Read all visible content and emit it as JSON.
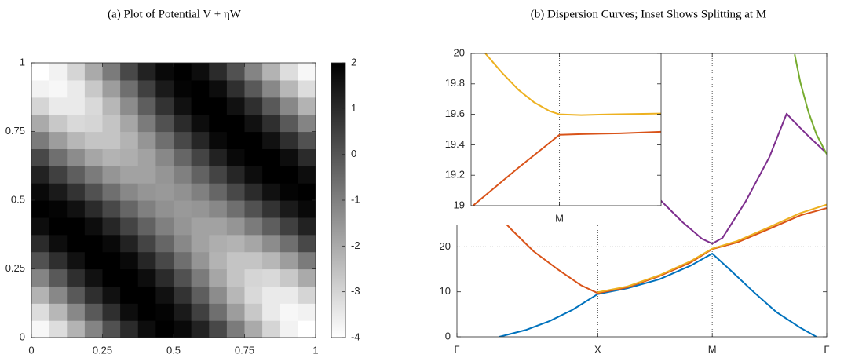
{
  "chart_data": [
    {
      "type": "heatmap",
      "title": "(a) Plot of Potential V + ηW",
      "xlim": [
        0,
        1
      ],
      "ylim": [
        0,
        1
      ],
      "xticks": [
        0,
        0.25,
        0.5,
        0.75,
        1
      ],
      "yticks": [
        0,
        0.25,
        0.5,
        0.75,
        1
      ],
      "colormap": [
        "#ffffff",
        "#000000"
      ],
      "colorbar": {
        "lim": [
          -4,
          2
        ],
        "ticks": [
          -4,
          -3,
          -2,
          -1,
          0,
          1,
          2
        ]
      },
      "z": [
        [
          -3.8,
          -3.2,
          -2.2,
          -1.1,
          0.1,
          1.0,
          1.7,
          2.0,
          1.8,
          1.2,
          0.3,
          -0.9,
          -2.0,
          -3.0,
          -3.7,
          -4.0
        ],
        [
          -3.2,
          -2.3,
          -1.2,
          -0.1,
          0.9,
          1.7,
          2.0,
          1.9,
          1.4,
          0.5,
          -0.6,
          -1.7,
          -2.7,
          -3.5,
          -3.8,
          -3.7
        ],
        [
          -2.2,
          -1.2,
          -0.1,
          0.9,
          1.6,
          2.0,
          2.0,
          1.6,
          0.8,
          -0.2,
          -1.3,
          -2.3,
          -3.1,
          -3.5,
          -3.5,
          -3.0
        ],
        [
          -1.1,
          -0.1,
          0.9,
          1.6,
          2.0,
          2.0,
          1.7,
          1.0,
          0.1,
          -0.9,
          -1.9,
          -2.6,
          -3.0,
          -3.1,
          -2.7,
          -2.0
        ],
        [
          0.1,
          0.9,
          1.6,
          2.0,
          2.1,
          1.8,
          1.1,
          0.3,
          -0.6,
          -1.5,
          -2.2,
          -2.6,
          -2.6,
          -2.3,
          -1.7,
          -0.9
        ],
        [
          1.0,
          1.7,
          2.0,
          2.0,
          1.8,
          1.2,
          0.4,
          -0.4,
          -1.2,
          -1.8,
          -2.1,
          -2.2,
          -1.9,
          -1.3,
          -0.6,
          0.3
        ],
        [
          1.7,
          2.0,
          2.0,
          1.7,
          1.1,
          0.4,
          -0.3,
          -1.0,
          -1.5,
          -1.8,
          -1.8,
          -1.5,
          -0.9,
          -0.2,
          0.5,
          1.2
        ],
        [
          2.0,
          1.9,
          1.6,
          1.0,
          0.3,
          -0.4,
          -1.0,
          -1.4,
          -1.6,
          -1.5,
          -1.2,
          -0.6,
          0.1,
          0.8,
          1.4,
          1.8
        ],
        [
          1.8,
          1.4,
          0.8,
          0.1,
          -0.6,
          -1.2,
          -1.5,
          -1.6,
          -1.4,
          -1.0,
          -0.4,
          0.3,
          1.0,
          1.6,
          1.9,
          2.0
        ],
        [
          1.2,
          0.5,
          -0.2,
          -0.9,
          -1.5,
          -1.8,
          -1.8,
          -1.5,
          -1.0,
          -0.3,
          0.4,
          1.1,
          1.7,
          2.0,
          2.0,
          1.7
        ],
        [
          0.3,
          -0.6,
          -1.3,
          -1.9,
          -2.2,
          -2.1,
          -1.8,
          -1.2,
          -0.4,
          0.4,
          1.2,
          1.8,
          2.0,
          2.0,
          1.7,
          1.0
        ],
        [
          -0.9,
          -1.7,
          -2.3,
          -2.6,
          -2.6,
          -2.2,
          -1.5,
          -0.6,
          0.3,
          1.1,
          1.8,
          2.1,
          2.0,
          1.6,
          0.9,
          0.1
        ],
        [
          -2.0,
          -2.7,
          -3.1,
          -3.0,
          -2.6,
          -1.9,
          -0.9,
          0.1,
          1.0,
          1.7,
          2.0,
          2.0,
          1.6,
          0.9,
          -0.1,
          -1.1
        ],
        [
          -3.0,
          -3.5,
          -3.5,
          -3.1,
          -2.3,
          -1.3,
          -0.2,
          0.8,
          1.6,
          2.0,
          2.0,
          1.6,
          0.9,
          -0.1,
          -1.2,
          -2.2
        ],
        [
          -3.7,
          -3.8,
          -3.5,
          -2.7,
          -1.7,
          -0.6,
          0.5,
          1.4,
          1.9,
          2.0,
          1.7,
          0.9,
          -0.1,
          -1.2,
          -2.3,
          -3.2
        ],
        [
          -4.0,
          -3.7,
          -3.0,
          -2.0,
          -0.9,
          0.3,
          1.2,
          1.8,
          2.0,
          1.7,
          1.0,
          0.1,
          -1.1,
          -2.2,
          -3.2,
          -3.8
        ]
      ]
    },
    {
      "type": "line",
      "title": "(b) Dispersion Curves; Inset Shows Splitting at M",
      "xlim": [
        0,
        3.23
      ],
      "ylim": [
        0,
        63
      ],
      "xticks": [
        {
          "value": 0,
          "label": "Γ"
        },
        {
          "value": 1.23,
          "label": "X"
        },
        {
          "value": 2.23,
          "label": "M"
        },
        {
          "value": 3.23,
          "label": "Γ"
        }
      ],
      "yticks": [
        0,
        10,
        20
      ],
      "ref_lines": {
        "x": [
          1.23,
          2.23
        ],
        "y": [
          20
        ]
      },
      "series": [
        {
          "color": "#0072bd",
          "x": [
            0.37,
            0.6,
            0.81,
            1.01,
            1.23,
            1.49,
            1.77,
            2.04,
            2.23,
            2.38,
            2.59,
            2.79,
            3.0,
            3.14
          ],
          "values": [
            0,
            1.5,
            3.5,
            6,
            9.5,
            10.8,
            12.8,
            15.8,
            18.5,
            15,
            10,
            5.5,
            2,
            0
          ]
        },
        {
          "color": "#d95319",
          "x": [
            0,
            0.12,
            0.26,
            0.47,
            0.67,
            0.88,
            1.08,
            1.23,
            1.49,
            1.77,
            2.04,
            2.23,
            2.45,
            2.73,
            3.0,
            3.23
          ],
          "values": [
            36,
            33,
            29.5,
            24,
            19,
            15,
            11.5,
            9.7,
            11,
            13.5,
            16.5,
            19.5,
            21,
            24,
            27,
            28.6
          ]
        },
        {
          "color": "#edb120",
          "x": [
            1.23,
            1.49,
            1.77,
            2.04,
            2.23,
            2.45,
            2.73,
            3.0,
            3.23
          ],
          "values": [
            9.9,
            11.2,
            13.7,
            16.8,
            19.6,
            21.3,
            24.4,
            27.5,
            29.4
          ]
        },
        {
          "color": "#7e2f8e",
          "x": [
            1.78,
            1.97,
            2.14,
            2.23,
            2.32,
            2.52,
            2.73,
            2.88,
            2.93,
            3.07,
            3.23
          ],
          "values": [
            30.3,
            25.5,
            21.8,
            20.7,
            22,
            30,
            40,
            49.6,
            48.2,
            44.6,
            40.8
          ]
        },
        {
          "color": "#77ac30",
          "x": [
            2.95,
            3.0,
            3.07,
            3.14,
            3.23
          ],
          "values": [
            62.8,
            56.5,
            50,
            45,
            40.6
          ]
        }
      ]
    },
    {
      "type": "line",
      "xlim": [
        2.137,
        2.337
      ],
      "ylim": [
        19,
        20
      ],
      "xticks": [
        {
          "value": 2.23,
          "label": "M"
        }
      ],
      "yticks": [
        19,
        19.2,
        19.4,
        19.6,
        19.8,
        20
      ],
      "ref_lines": {
        "x": [
          2.23
        ],
        "y": [
          19.74
        ]
      },
      "series": [
        {
          "color": "#edb120",
          "x": [
            2.152,
            2.17,
            2.187,
            2.203,
            2.22,
            2.23,
            2.253,
            2.286,
            2.337
          ],
          "values": [
            20.0,
            19.87,
            19.76,
            19.68,
            19.62,
            19.6,
            19.595,
            19.6,
            19.605
          ]
        },
        {
          "color": "#d95319",
          "x": [
            2.139,
            2.162,
            2.187,
            2.211,
            2.23,
            2.253,
            2.294,
            2.337
          ],
          "values": [
            19.0,
            19.12,
            19.25,
            19.37,
            19.465,
            19.47,
            19.475,
            19.485
          ]
        }
      ]
    }
  ]
}
